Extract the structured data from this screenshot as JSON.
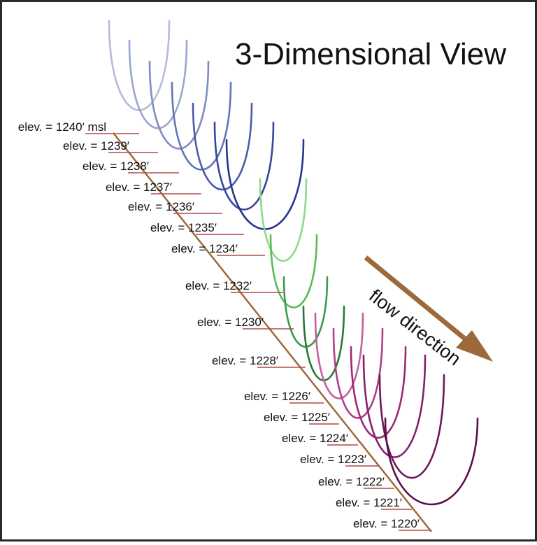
{
  "title": "3-Dimensional View",
  "flow_label": "flow direction",
  "colors": {
    "frame": "#2a2a2a",
    "thalweg": "#9c6a3a",
    "leader": "#b14a4a",
    "arrow": "#9c6a3a",
    "label_text": "#111111"
  },
  "cross_sections": [
    {
      "label": "elev. = 1240′ msl",
      "color": "#b3bcd8"
    },
    {
      "label": "elev. = 1239′",
      "color": "#9aa6cf"
    },
    {
      "label": "elev. = 1238′",
      "color": "#7d8cc4"
    },
    {
      "label": "elev. = 1237′",
      "color": "#6474b6"
    },
    {
      "label": "elev. = 1236′",
      "color": "#4b5ba8"
    },
    {
      "label": "elev. = 1235′",
      "color": "#36479c"
    },
    {
      "label": "elev. = 1234′",
      "color": "#26358d"
    },
    {
      "label": "elev. = 1232′",
      "color": "#8ed88a"
    },
    {
      "label": "elev. = 1230′",
      "color": "#57bb5a"
    },
    {
      "label": "elev. = 1228′",
      "color": "#3a9a48"
    },
    {
      "label": "elev. = 1226′",
      "color": "#2a7836"
    },
    {
      "label": "elev. = 1225′",
      "color": "#c4609c"
    },
    {
      "label": "elev. = 1224′",
      "color": "#ad3e88"
    },
    {
      "label": "elev. = 1223′",
      "color": "#9c2878"
    },
    {
      "label": "elev. = 1222′",
      "color": "#86206a"
    },
    {
      "label": "elev. = 1221′",
      "color": "#6f175c"
    },
    {
      "label": "elev. = 1220′",
      "color": "#5a1049"
    }
  ]
}
